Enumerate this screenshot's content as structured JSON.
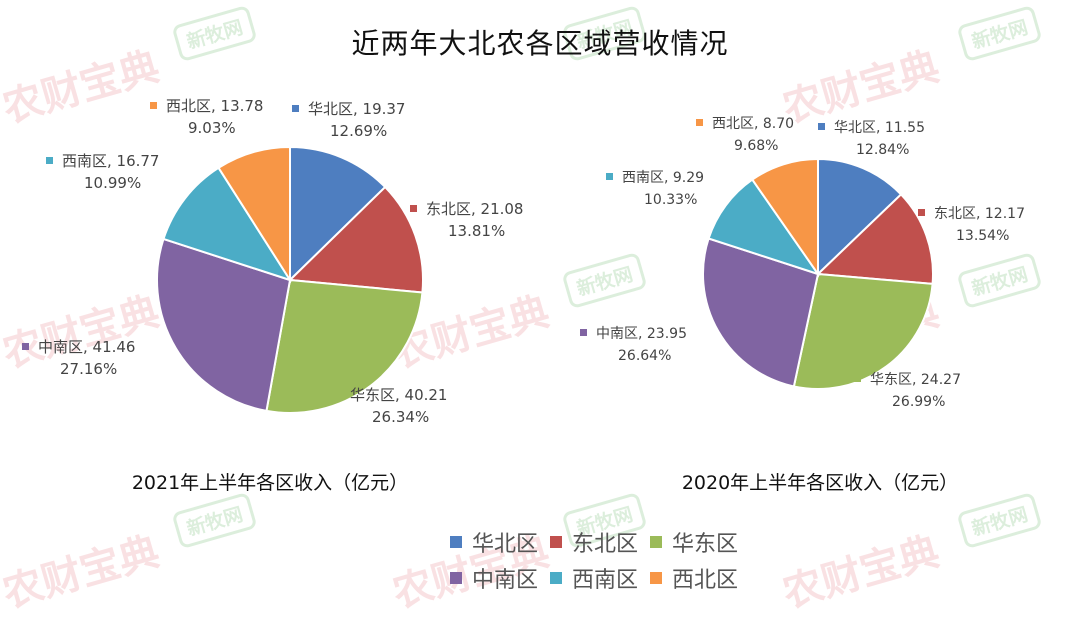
{
  "title": "近两年大北农各区域营收情况",
  "watermarks": {
    "brand": "农财宝典",
    "stamp": "新牧网"
  },
  "colors": {
    "华北区": "#4e7ec0",
    "东北区": "#c0504d",
    "华东区": "#9bbb59",
    "中南区": "#8064a2",
    "西南区": "#4bacc6",
    "西北区": "#f79646"
  },
  "chart_data": [
    {
      "type": "pie",
      "title": "2021年上半年各区收入（亿元）",
      "slices": [
        {
          "label": "华北区",
          "value": 19.37,
          "percent": "12.69%"
        },
        {
          "label": "东北区",
          "value": 21.08,
          "percent": "13.81%"
        },
        {
          "label": "华东区",
          "value": 40.21,
          "percent": "26.34%"
        },
        {
          "label": "中南区",
          "value": 41.46,
          "percent": "27.16%"
        },
        {
          "label": "西南区",
          "value": 16.77,
          "percent": "10.99%"
        },
        {
          "label": "西北区",
          "value": 13.78,
          "percent": "9.03%"
        }
      ]
    },
    {
      "type": "pie",
      "title": "2020年上半年各区收入（亿元）",
      "slices": [
        {
          "label": "华北区",
          "value": 11.55,
          "percent": "12.84%"
        },
        {
          "label": "东北区",
          "value": 12.17,
          "percent": "13.54%"
        },
        {
          "label": "华东区",
          "value": 24.27,
          "percent": "26.99%"
        },
        {
          "label": "中南区",
          "value": 23.95,
          "percent": "26.64%"
        },
        {
          "label": "西南区",
          "value": 9.29,
          "percent": "10.33%"
        },
        {
          "label": "西北区",
          "value": 8.7,
          "percent": "9.68%"
        }
      ]
    }
  ],
  "legend": [
    "华北区",
    "东北区",
    "华东区",
    "中南区",
    "西南区",
    "西北区"
  ]
}
